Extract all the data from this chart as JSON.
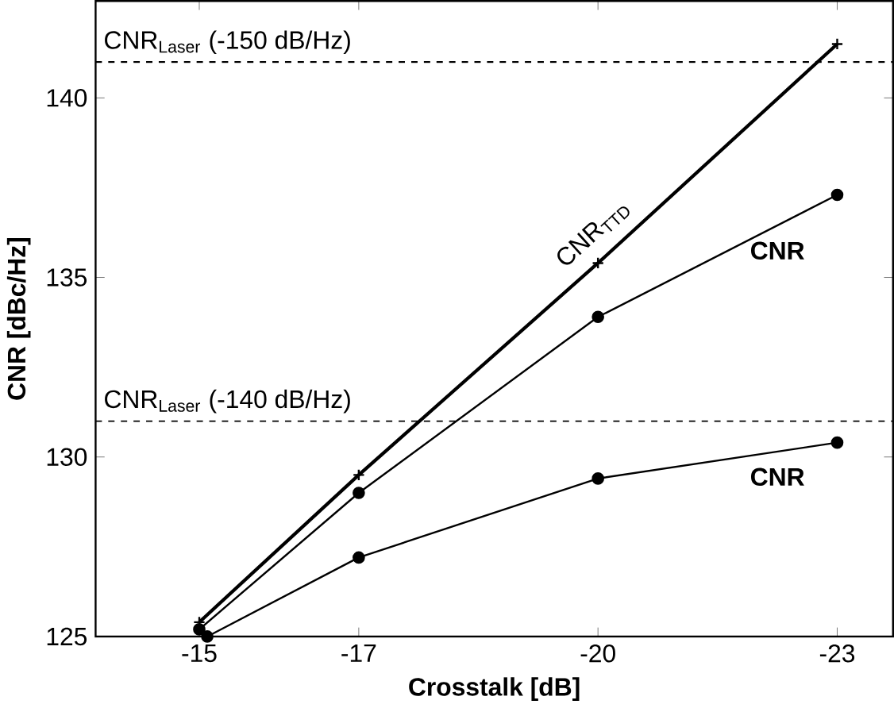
{
  "chart_data": {
    "type": "line",
    "xlabel": "Crosstalk [dB]",
    "ylabel": "CNR [dBc/Hz]",
    "xlim": [
      -13.7,
      -23.7
    ],
    "ylim": [
      125,
      142.7
    ],
    "xticks": [
      -15,
      -17,
      -20,
      -23
    ],
    "yticks": [
      125,
      130,
      135,
      140
    ],
    "grid": false,
    "legend": false,
    "line_style": "solid",
    "series": [
      {
        "name": "CNR$_{TTD}$",
        "color": "#000000",
        "marker": "cross",
        "x": [
          -15,
          -17,
          -20,
          -23
        ],
        "values": [
          125.4,
          129.5,
          135.4,
          141.5
        ]
      },
      {
        "name": "CNR",
        "color": "#000000",
        "marker": "circle",
        "x": [
          -15,
          -17,
          -20,
          -23
        ],
        "values": [
          125.2,
          129.0,
          133.9,
          137.3
        ]
      },
      {
        "name": "CNR",
        "color": "#000000",
        "marker": "circle",
        "x": [
          -15.1,
          -17,
          -20,
          -23
        ],
        "values": [
          125.0,
          127.2,
          129.4,
          130.4
        ]
      }
    ],
    "ref_lines": [
      {
        "axis": "y",
        "value": 141,
        "label": "CNR$_{Laser}$ (-150 dB/Hz)",
        "line_style": "dashed"
      },
      {
        "axis": "y",
        "value": 131,
        "label": "CNR$_{Laser}$ (-140 dB/Hz)",
        "line_style": "dashed"
      }
    ]
  }
}
